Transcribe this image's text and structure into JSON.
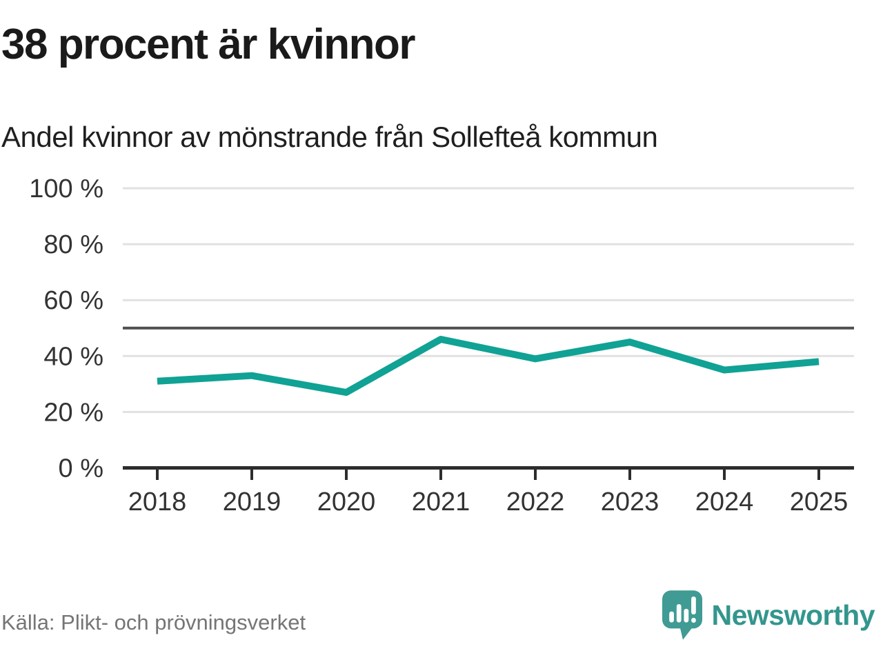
{
  "header": {
    "title": "38 procent är kvinnor",
    "subtitle": "Andel kvinnor av mönstrande från Sollefteå kommun"
  },
  "footer": {
    "source": "Källa: Plikt- och prövningsverket",
    "brand": "Newsworthy",
    "logo_icon": "speech-bubble-bar-chart-icon"
  },
  "colors": {
    "line": "#10a294",
    "grid": "#e1e1e1",
    "reference_line": "#4f4f4f",
    "axis": "#2d2d2d",
    "axis_label": "#333333",
    "title_text": "#1a1a1a",
    "muted_text": "#757575",
    "logo": "#3f9b93",
    "wordmark": "#33968d"
  },
  "chart_data": {
    "type": "line",
    "title": "38 procent är kvinnor",
    "subtitle": "Andel kvinnor av mönstrande från Sollefteå kommun",
    "categories": [
      "2018",
      "2019",
      "2020",
      "2021",
      "2022",
      "2023",
      "2024",
      "2025"
    ],
    "series": [
      {
        "name": "Andel kvinnor av mönstrande",
        "values": [
          31,
          33,
          27,
          46,
          39,
          45,
          35,
          38
        ]
      }
    ],
    "unit": "%",
    "ylim": [
      0,
      100
    ],
    "yticks": [
      0,
      20,
      40,
      60,
      80,
      100
    ],
    "ytick_suffix": " %",
    "reference_line": 50,
    "grid": "horizontal",
    "legend": "none",
    "xlabel": "",
    "ylabel": ""
  }
}
